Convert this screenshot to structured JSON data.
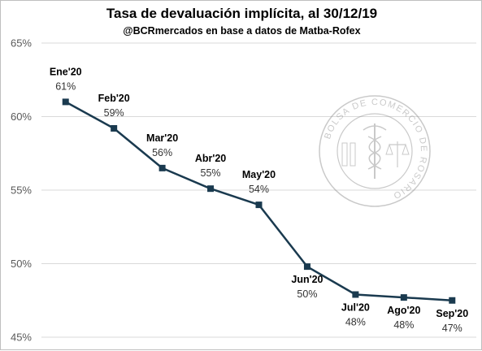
{
  "chart_data": {
    "type": "line",
    "title": "Tasa de devaluación implícita, al 30/12/19",
    "subtitle": "@BCRmercados  en base a datos de Matba-Rofex",
    "xlabel": "",
    "ylabel": "",
    "ylim": [
      45,
      65
    ],
    "yticks": [
      "45%",
      "50%",
      "55%",
      "60%",
      "65%"
    ],
    "grid": "horizontal",
    "line_color": "#1a3a4f",
    "categories": [
      "Ene'20",
      "Feb'20",
      "Mar'20",
      "Abr'20",
      "May'20",
      "Jun'20",
      "Jul'20",
      "Ago'20",
      "Sep'20"
    ],
    "values": [
      61.0,
      59.2,
      56.5,
      55.1,
      54.0,
      49.8,
      47.9,
      47.7,
      47.5
    ],
    "data_labels": [
      "61%",
      "59%",
      "56%",
      "55%",
      "54%",
      "50%",
      "48%",
      "48%",
      "47%"
    ],
    "label_positions": [
      "above",
      "above",
      "above",
      "above",
      "above",
      "below",
      "below",
      "below",
      "below"
    ]
  },
  "watermark": {
    "text": "BOLSA DE COMERCIO DE ROSARIO"
  }
}
